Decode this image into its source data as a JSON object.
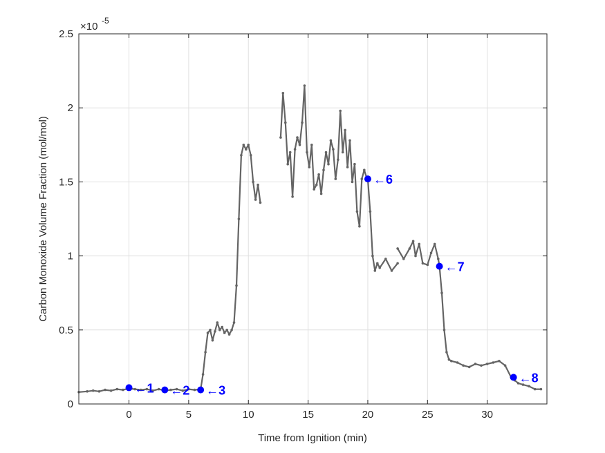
{
  "chart_data": {
    "type": "line",
    "xlabel": "Time from Ignition (min)",
    "ylabel": "Carbon Monoxide Volume Fraction (mol/mol)",
    "y_exponent_label": "×10",
    "y_exponent": "-5",
    "xlim": [
      -4.2,
      35
    ],
    "ylim": [
      0,
      2.5e-05
    ],
    "grid": true,
    "x_ticks": [
      0,
      5,
      10,
      15,
      20,
      25,
      30
    ],
    "x_tick_labels": [
      "0",
      "5",
      "10",
      "15",
      "20",
      "25",
      "30"
    ],
    "y_ticks": [
      0,
      5e-06,
      1e-05,
      1.5e-05,
      2e-05,
      2.5e-05
    ],
    "y_tick_labels": [
      "0",
      "0.5",
      "1",
      "1.5",
      "2",
      "2.5"
    ],
    "line_color": "#646464",
    "marker_color": "#0000ff",
    "series": [
      {
        "segments": [
          {
            "x": [
              -4.2,
              -3.5,
              -3.0,
              -2.5,
              -2.0,
              -1.5,
              -1.0,
              -0.5,
              0.0,
              0.5,
              1.0,
              1.5,
              2.0,
              2.5,
              3.0,
              3.5,
              4.0,
              4.5,
              5.0,
              5.5,
              6.0,
              6.2,
              6.4,
              6.6,
              6.8,
              7.0,
              7.2,
              7.4,
              7.6,
              7.8,
              8.0,
              8.2,
              8.4,
              8.6,
              8.8,
              9.0,
              9.2,
              9.4,
              9.6,
              9.8,
              10.0,
              10.2,
              10.4,
              10.6,
              10.8,
              11.0
            ],
            "y": [
              8e-07,
              8.5e-07,
              9e-07,
              8.5e-07,
              9.5e-07,
              9e-07,
              1e-06,
              9.5e-07,
              1.05e-06,
              1e-06,
              9.5e-07,
              1e-06,
              9e-07,
              1e-06,
              9e-07,
              9.5e-07,
              1e-06,
              9e-07,
              1e-06,
              9.5e-07,
              1e-06,
              2e-06,
              3.5e-06,
              4.8e-06,
              5e-06,
              4.3e-06,
              4.9e-06,
              5.5e-06,
              5e-06,
              5.2e-06,
              4.8e-06,
              5e-06,
              4.7e-06,
              5e-06,
              5.5e-06,
              8e-06,
              1.25e-05,
              1.68e-05,
              1.75e-05,
              1.72e-05,
              1.75e-05,
              1.68e-05,
              1.5e-05,
              1.38e-05,
              1.48e-05,
              1.36e-05
            ]
          },
          {
            "x": [
              12.7,
              12.9,
              13.1,
              13.3,
              13.5,
              13.7,
              13.9,
              14.1,
              14.3,
              14.5,
              14.7,
              14.9,
              15.1,
              15.3,
              15.5,
              15.7,
              15.9,
              16.1,
              16.3,
              16.5,
              16.7,
              16.9,
              17.1,
              17.3,
              17.5,
              17.7,
              17.9,
              18.1,
              18.3,
              18.5,
              18.7,
              18.9,
              19.1,
              19.3,
              19.5,
              19.7,
              19.9,
              20.0,
              20.2,
              20.4,
              20.6,
              20.8,
              21.0,
              21.5,
              22.0,
              22.5
            ],
            "y": [
              1.8e-05,
              2.1e-05,
              1.9e-05,
              1.62e-05,
              1.7e-05,
              1.4e-05,
              1.72e-05,
              1.8e-05,
              1.75e-05,
              1.9e-05,
              2.15e-05,
              1.7e-05,
              1.6e-05,
              1.75e-05,
              1.45e-05,
              1.48e-05,
              1.55e-05,
              1.42e-05,
              1.58e-05,
              1.7e-05,
              1.62e-05,
              1.78e-05,
              1.72e-05,
              1.52e-05,
              1.65e-05,
              1.98e-05,
              1.7e-05,
              1.85e-05,
              1.6e-05,
              1.78e-05,
              1.5e-05,
              1.62e-05,
              1.3e-05,
              1.2e-05,
              1.52e-05,
              1.58e-05,
              1.53e-05,
              1.52e-05,
              1.3e-05,
              1e-05,
              9e-06,
              9.5e-06,
              9.2e-06,
              9.8e-06,
              9e-06,
              9.5e-06
            ]
          },
          {
            "x": [
              22.5,
              23.0,
              23.5,
              23.8,
              24.0,
              24.3,
              24.6,
              25.0,
              25.3,
              25.6,
              25.9,
              26.0,
              26.2,
              26.4,
              26.6,
              26.8,
              27.0,
              27.5,
              28.0,
              28.5,
              29.0,
              29.5,
              30.0,
              30.5,
              31.0,
              31.5,
              32.0,
              32.3,
              32.6,
              33.0,
              33.5,
              34.0,
              34.5
            ],
            "y": [
              1.05e-05,
              9.8e-06,
              1.05e-05,
              1.1e-05,
              1e-05,
              1.08e-05,
              9.5e-06,
              9.4e-06,
              1.02e-05,
              1.08e-05,
              9.8e-06,
              9.3e-06,
              7.5e-06,
              5e-06,
              3.5e-06,
              3e-06,
              2.9e-06,
              2.8e-06,
              2.6e-06,
              2.5e-06,
              2.7e-06,
              2.6e-06,
              2.7e-06,
              2.8e-06,
              2.9e-06,
              2.6e-06,
              1.8e-06,
              1.6e-06,
              1.4e-06,
              1.3e-06,
              1.2e-06,
              1e-06,
              1e-06
            ]
          }
        ]
      }
    ],
    "markers": [
      {
        "x": 0.0,
        "y": 1.1e-06,
        "label": "←1"
      },
      {
        "x": 3.0,
        "y": 9.5e-07,
        "label": "←2"
      },
      {
        "x": 6.0,
        "y": 9.5e-07,
        "label": "←3"
      },
      {
        "x": 20.0,
        "y": 1.52e-05,
        "label": "←6"
      },
      {
        "x": 26.0,
        "y": 9.3e-06,
        "label": "←7"
      },
      {
        "x": 32.2,
        "y": 1.8e-06,
        "label": "←8"
      }
    ]
  }
}
